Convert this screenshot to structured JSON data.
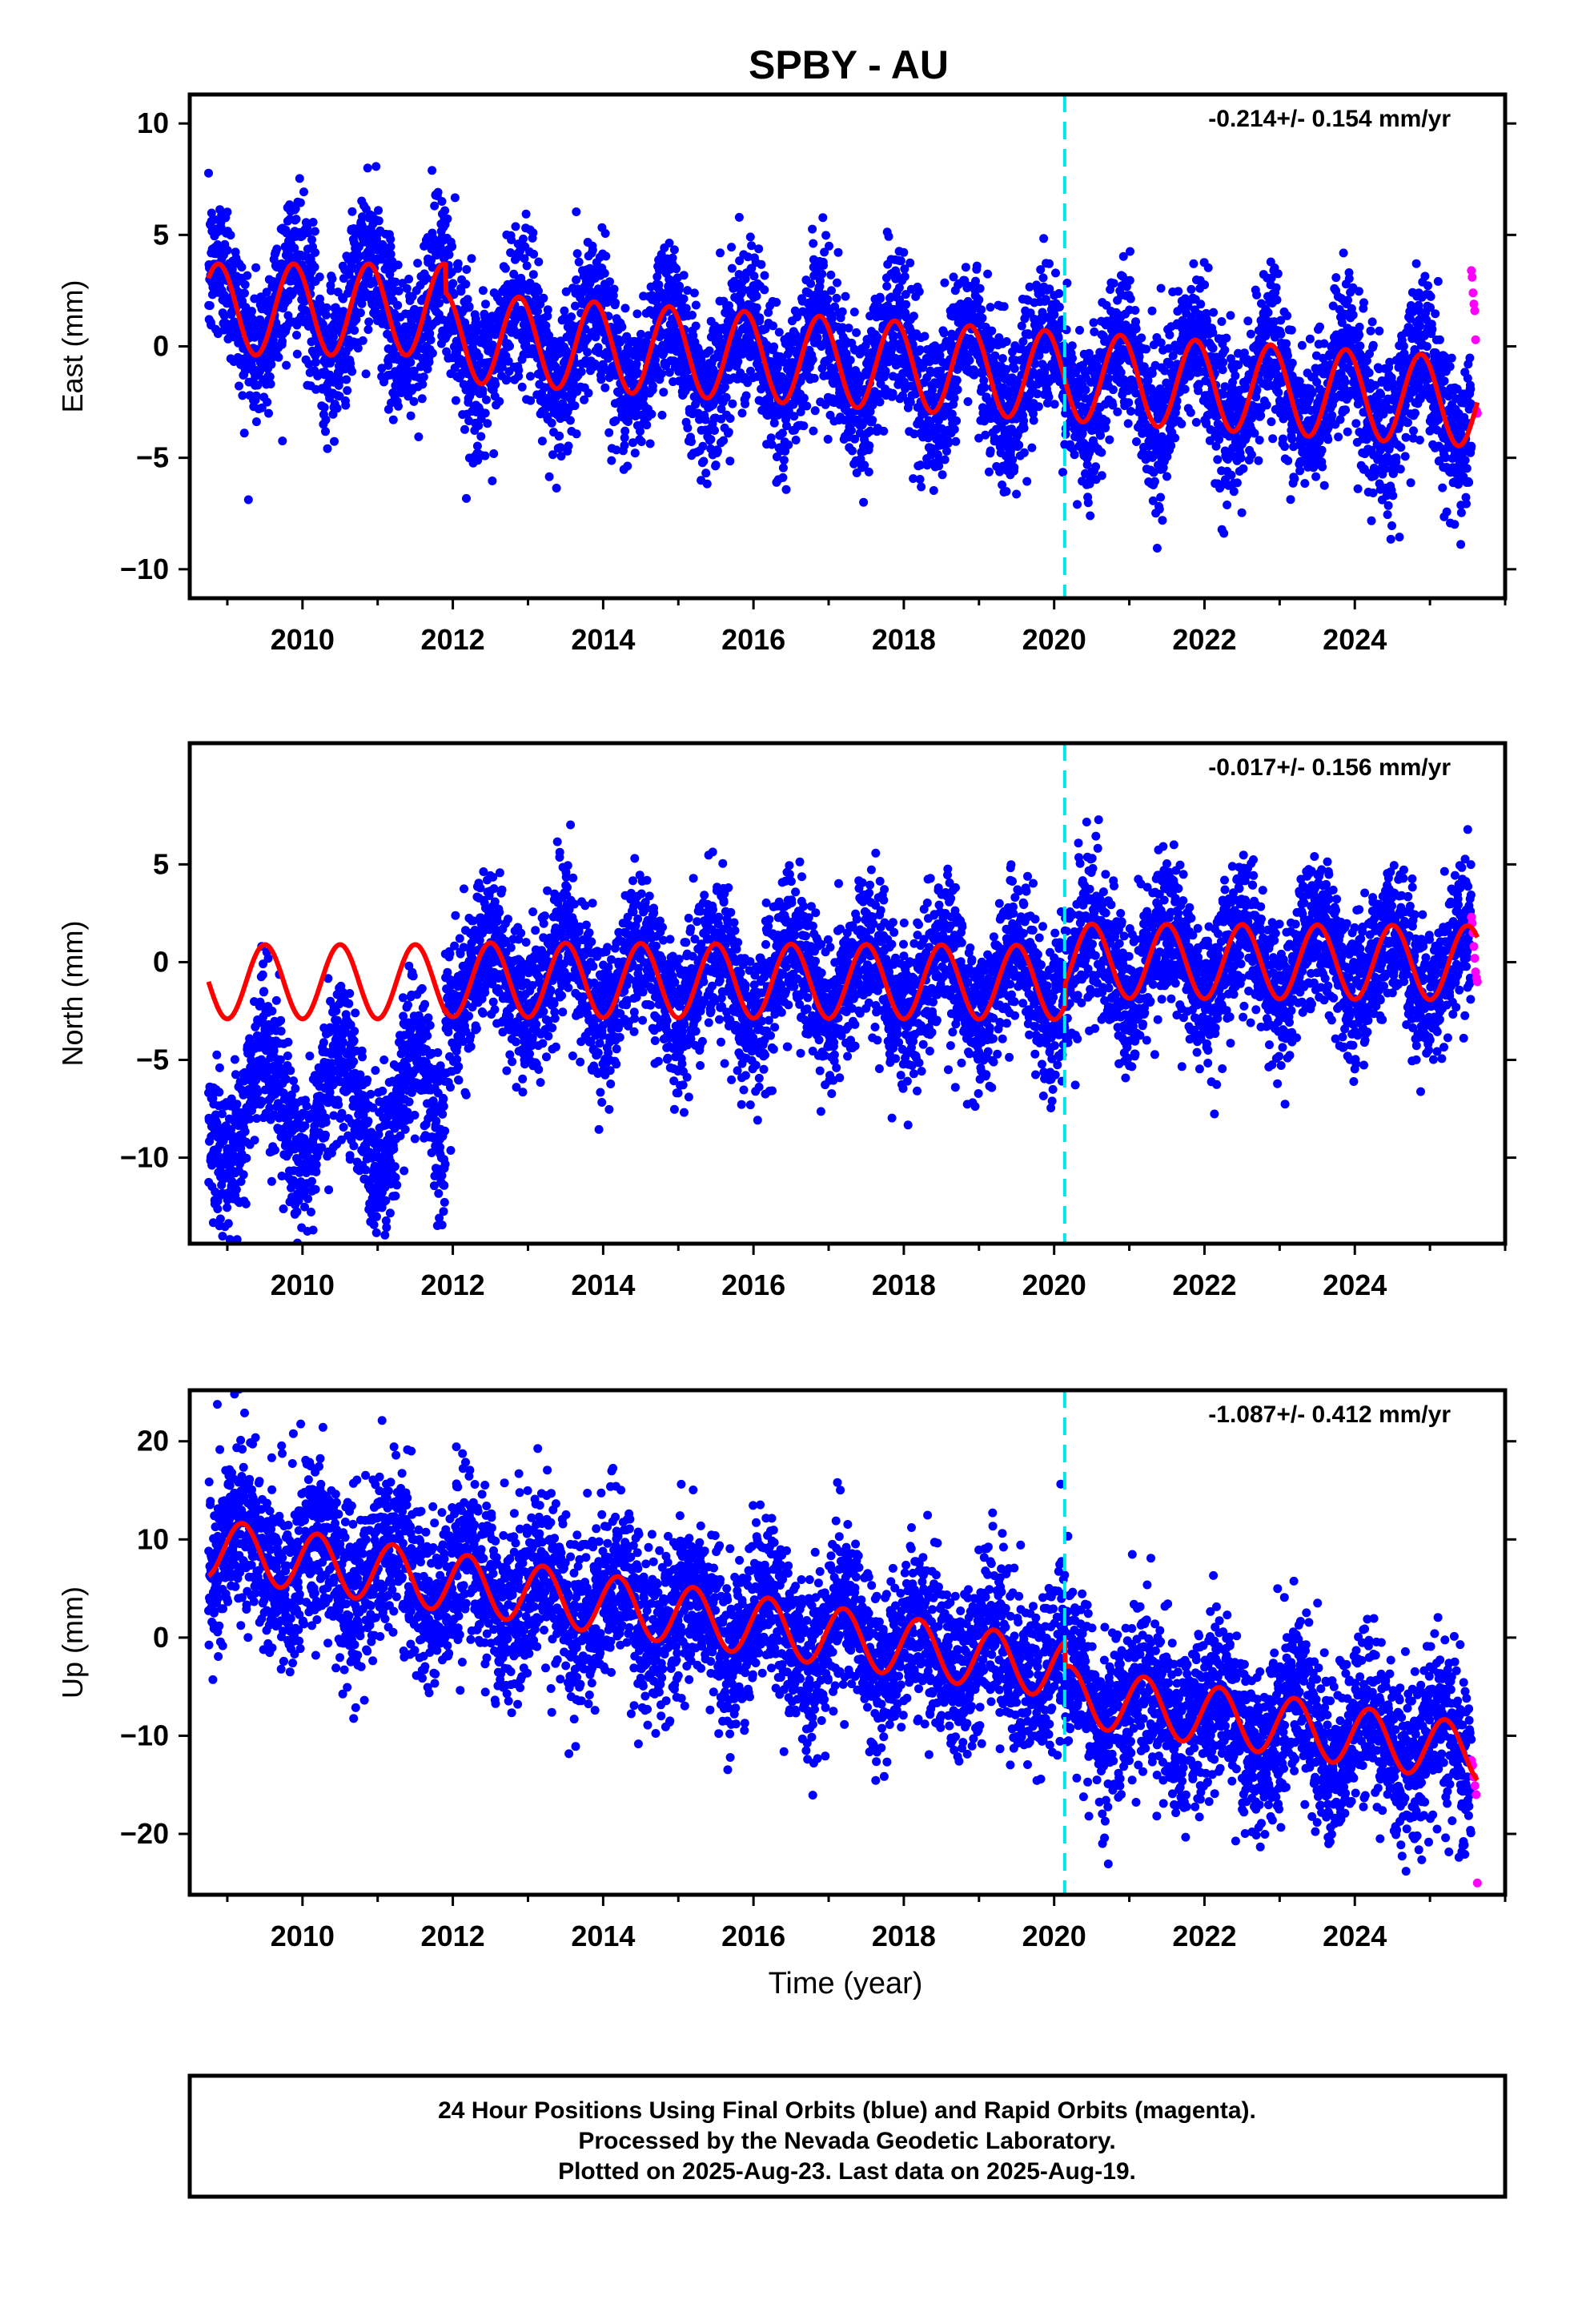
{
  "colors": {
    "final_points": "#0000ff",
    "rapid_points": "#ff00ff",
    "model_line": "#ff0000",
    "event_line": "#00e5ee",
    "frame": "#000000"
  },
  "chart_data": {
    "type": "scatter",
    "title": "SPBY - AU",
    "xlabel": "Time (year)",
    "xlim": [
      2008.5,
      2026.0
    ],
    "xticks": [
      2010,
      2012,
      2014,
      2016,
      2018,
      2020,
      2022,
      2024
    ],
    "data_start": 2008.75,
    "rapid_start": 2025.55,
    "data_end": 2025.63,
    "event_line_x": 2020.14,
    "panels": [
      {
        "id": "east",
        "ylabel": "East (mm)",
        "ylim": [
          -11.3,
          11.3
        ],
        "yticks": [
          -10,
          -5,
          0,
          5,
          10
        ],
        "rate_label": "-0.214+/- 0.154 mm/yr",
        "model": {
          "segments": [
            {
              "from": 2008.75,
              "to": 2011.9,
              "offset": 1.65,
              "rate": 0.0,
              "amp": 2.05,
              "phase": 0.88
            },
            {
              "from": 2011.9,
              "to": 2025.63,
              "offset": 0.4,
              "rate": -0.214,
              "amp": 2.0,
              "phase": 0.88
            }
          ],
          "ref": 2012.0
        },
        "scatter_sd": 1.7,
        "rapid_points": [
          3.4,
          3.1,
          2.4,
          1.9,
          1.6,
          0.3,
          -2.9,
          -3.0
        ]
      },
      {
        "id": "north",
        "ylabel": "North (mm)",
        "ylim": [
          -14.4,
          11.2
        ],
        "yticks": [
          -10,
          -5,
          0,
          5
        ],
        "rate_label": "-0.017+/- 0.156 mm/yr",
        "model": {
          "segments": [
            {
              "from": 2008.75,
              "to": 2011.9,
              "offset": -1.0,
              "rate": 0.0,
              "amp": 1.9,
              "phase": 0.5
            },
            {
              "from": 2011.9,
              "to": 2020.14,
              "offset": -0.9,
              "rate": -0.017,
              "amp": 1.9,
              "phase": 0.5
            },
            {
              "from": 2020.14,
              "to": 2025.63,
              "offset": 0.2,
              "rate": -0.017,
              "amp": 1.9,
              "phase": 0.5
            }
          ],
          "ref": 2012.0
        },
        "data_offsets": [
          {
            "from": 2008.75,
            "to": 2011.9,
            "offset": -7.4
          }
        ],
        "scatter_sd": 1.9,
        "rapid_points": [
          2.3,
          2.0,
          1.5,
          0.8,
          0.2,
          -0.5,
          -0.8,
          -1.0
        ]
      },
      {
        "id": "up",
        "ylabel": "Up (mm)",
        "ylim": [
          -26.2,
          25.2
        ],
        "yticks": [
          -20,
          -10,
          0,
          10,
          20
        ],
        "rate_label": "-1.087+/- 0.412 mm/yr",
        "model": {
          "segments": [
            {
              "from": 2008.75,
              "to": 2020.14,
              "offset": 5.6,
              "rate": -1.087,
              "amp": 3.0,
              "phase": 0.2
            },
            {
              "from": 2020.14,
              "to": 2025.63,
              "offset": 3.0,
              "rate": -1.087,
              "amp": 3.0,
              "phase": 0.2
            }
          ],
          "ref": 2012.0
        },
        "scatter_sd": 4.3,
        "rapid_points": [
          -12.5,
          -13.0,
          -14.2,
          -15.1,
          -16.0,
          -25.0
        ]
      }
    ]
  },
  "footer": {
    "line1": "24 Hour Positions Using Final Orbits (blue) and Rapid Orbits (magenta).",
    "line2": "Processed by the Nevada Geodetic Laboratory.",
    "line3": "Plotted on 2025-Aug-23. Last data on 2025-Aug-19."
  }
}
